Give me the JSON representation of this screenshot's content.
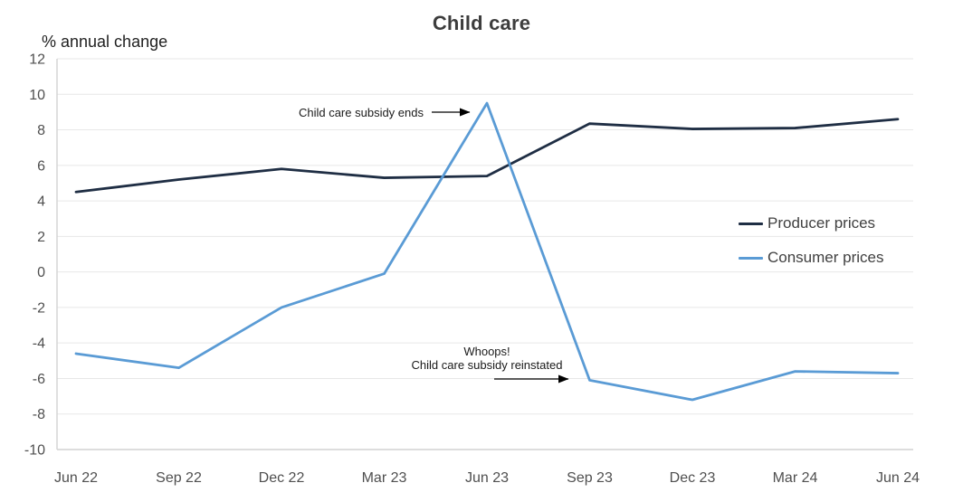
{
  "title": "Child care",
  "y_axis_caption": "% annual change",
  "legend": {
    "items": [
      {
        "label": "Producer prices",
        "color": "#1f2e44"
      },
      {
        "label": "Consumer prices",
        "color": "#5a9bd5"
      }
    ]
  },
  "annotations": {
    "subsidy_ends": "Child care subsidy ends",
    "whoops_line1": "Whoops!",
    "whoops_line2": "Child care subsidy reinstated"
  },
  "colors": {
    "producer": "#1f2e44",
    "consumer": "#5a9bd5",
    "gridline": "#e7e7e7",
    "axis_line": "#d2d2d2",
    "tick_label": "#4f4f4f",
    "arrow": "#000000"
  },
  "chart_data": {
    "type": "line",
    "title": "Child care",
    "ylabel": "% annual change",
    "categories": [
      "Jun 22",
      "Sep 22",
      "Dec 22",
      "Mar 23",
      "Jun 23",
      "Sep 23",
      "Dec 23",
      "Mar 24",
      "Jun 24"
    ],
    "series": [
      {
        "name": "Producer prices",
        "color": "#1f2e44",
        "values": [
          4.5,
          5.2,
          5.8,
          5.3,
          5.4,
          8.35,
          8.05,
          8.1,
          8.6
        ]
      },
      {
        "name": "Consumer prices",
        "color": "#5a9bd5",
        "values": [
          -4.6,
          -5.4,
          -2.0,
          -0.1,
          9.5,
          -6.1,
          -7.2,
          -5.6,
          -5.7
        ]
      }
    ],
    "ylim": [
      -10,
      12
    ],
    "ytick_step": 2,
    "grid": "horizontal",
    "legend_position": "right-middle",
    "annotation_points": [
      {
        "text": "Child care subsidy ends",
        "target_category": "Jun 23",
        "target_series": "Consumer prices",
        "target_value": 9.5
      },
      {
        "text": "Whoops! Child care subsidy reinstated",
        "target_category": "Sep 23",
        "target_series": "Consumer prices",
        "target_value": -6.1
      }
    ]
  }
}
